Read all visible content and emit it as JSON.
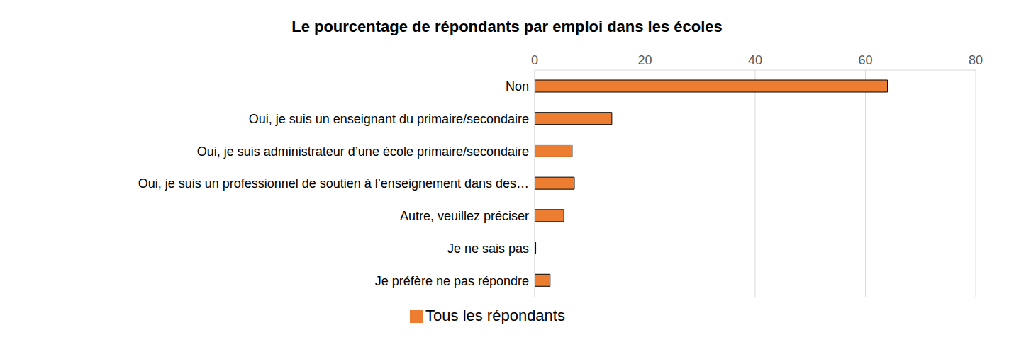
{
  "chart_data": {
    "type": "bar",
    "orientation": "horizontal",
    "title": "Le pourcentage de répondants par emploi dans les écoles",
    "categories": [
      "Non",
      "Oui, je suis un enseignant du primaire/secondaire",
      "Oui, je suis administrateur d’une école primaire/secondaire",
      "Oui, je suis un professionnel de soutien à l’enseignement dans des…",
      "Autre, veuillez préciser",
      "Je ne sais pas",
      "Je préfère ne pas répondre"
    ],
    "series": [
      {
        "name": "Tous les répondants",
        "color": "#ed7d31",
        "values": [
          64,
          14,
          6.8,
          7.2,
          5.3,
          0.2,
          2.8
        ]
      }
    ],
    "xlim": [
      0,
      80
    ],
    "xticks": [
      0,
      20,
      40,
      60,
      80
    ],
    "grid": true,
    "legend": "bottom"
  }
}
